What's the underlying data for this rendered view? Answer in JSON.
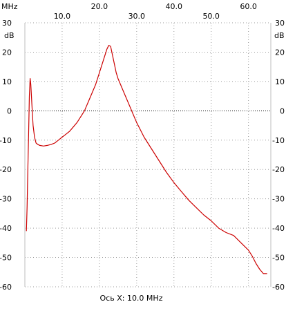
{
  "chart_data": {
    "type": "line",
    "x_unit_label": "MHz",
    "y_unit_label_left": "dB",
    "y_unit_label_right": "dB",
    "xlabel": "Ось X: 10.0 MHz",
    "xlim": [
      0,
      66
    ],
    "ylim": [
      -60,
      30
    ],
    "x_ticks_top_row": [
      "20.0",
      "40.0",
      "60.0"
    ],
    "x_ticks_bottom_row": [
      "10.0",
      "30.0",
      "50.0"
    ],
    "x_tick_values_top_row": [
      20,
      40,
      60
    ],
    "x_tick_values_bottom_row": [
      10,
      30,
      50
    ],
    "y_ticks": [
      "30",
      "20",
      "10",
      "0",
      "-10",
      "-20",
      "-30",
      "-40",
      "-50",
      "-60"
    ],
    "y_tick_values": [
      30,
      20,
      10,
      0,
      -10,
      -20,
      -30,
      -40,
      -50,
      -60
    ],
    "grid": "dotted",
    "zero_line": "dotted",
    "colors": {
      "trace": "#cc0000",
      "grid": "#999999",
      "zero": "#000000"
    },
    "series": [
      {
        "values_x": [
          0.4,
          0.6,
          0.8,
          1.0,
          1.2,
          1.4,
          1.6,
          1.9,
          2.2,
          2.6,
          3.0,
          3.5,
          4.0,
          5.0,
          6.0,
          7.0,
          8.0,
          9.0,
          10.0,
          11.0,
          12.0,
          13.0,
          14.0,
          15.0,
          16.0,
          17.0,
          18.0,
          19.0,
          20.0,
          21.0,
          22.0,
          22.5,
          23.0,
          23.5,
          24.0,
          24.5,
          25.0,
          26.0,
          27.0,
          28.0,
          29.0,
          30.0,
          31.0,
          32.0,
          34.0,
          36.0,
          38.0,
          40.0,
          42.0,
          44.0,
          46.0,
          48.0,
          50.0,
          52.0,
          54.0,
          56.0,
          58.0,
          60.0,
          61.0,
          62.0,
          63.0,
          64.0,
          65.0
        ],
        "values_y": [
          -41,
          -33,
          -20,
          -8,
          5,
          11,
          9,
          2,
          -5,
          -9,
          -11,
          -11.5,
          -11.8,
          -12,
          -11.8,
          -11.5,
          -11,
          -10,
          -9,
          -8,
          -7,
          -5.5,
          -4,
          -2,
          0,
          3,
          6,
          9,
          13,
          17,
          21,
          22.3,
          22,
          19,
          16,
          13,
          11,
          8,
          5,
          2,
          -1,
          -4,
          -6.5,
          -9,
          -13,
          -17,
          -21,
          -24.5,
          -27.5,
          -30.5,
          -33,
          -35.5,
          -37.5,
          -40,
          -41.5,
          -42.5,
          -45,
          -47.5,
          -49.5,
          -52,
          -54,
          -55.5,
          -55.5
        ]
      }
    ]
  }
}
